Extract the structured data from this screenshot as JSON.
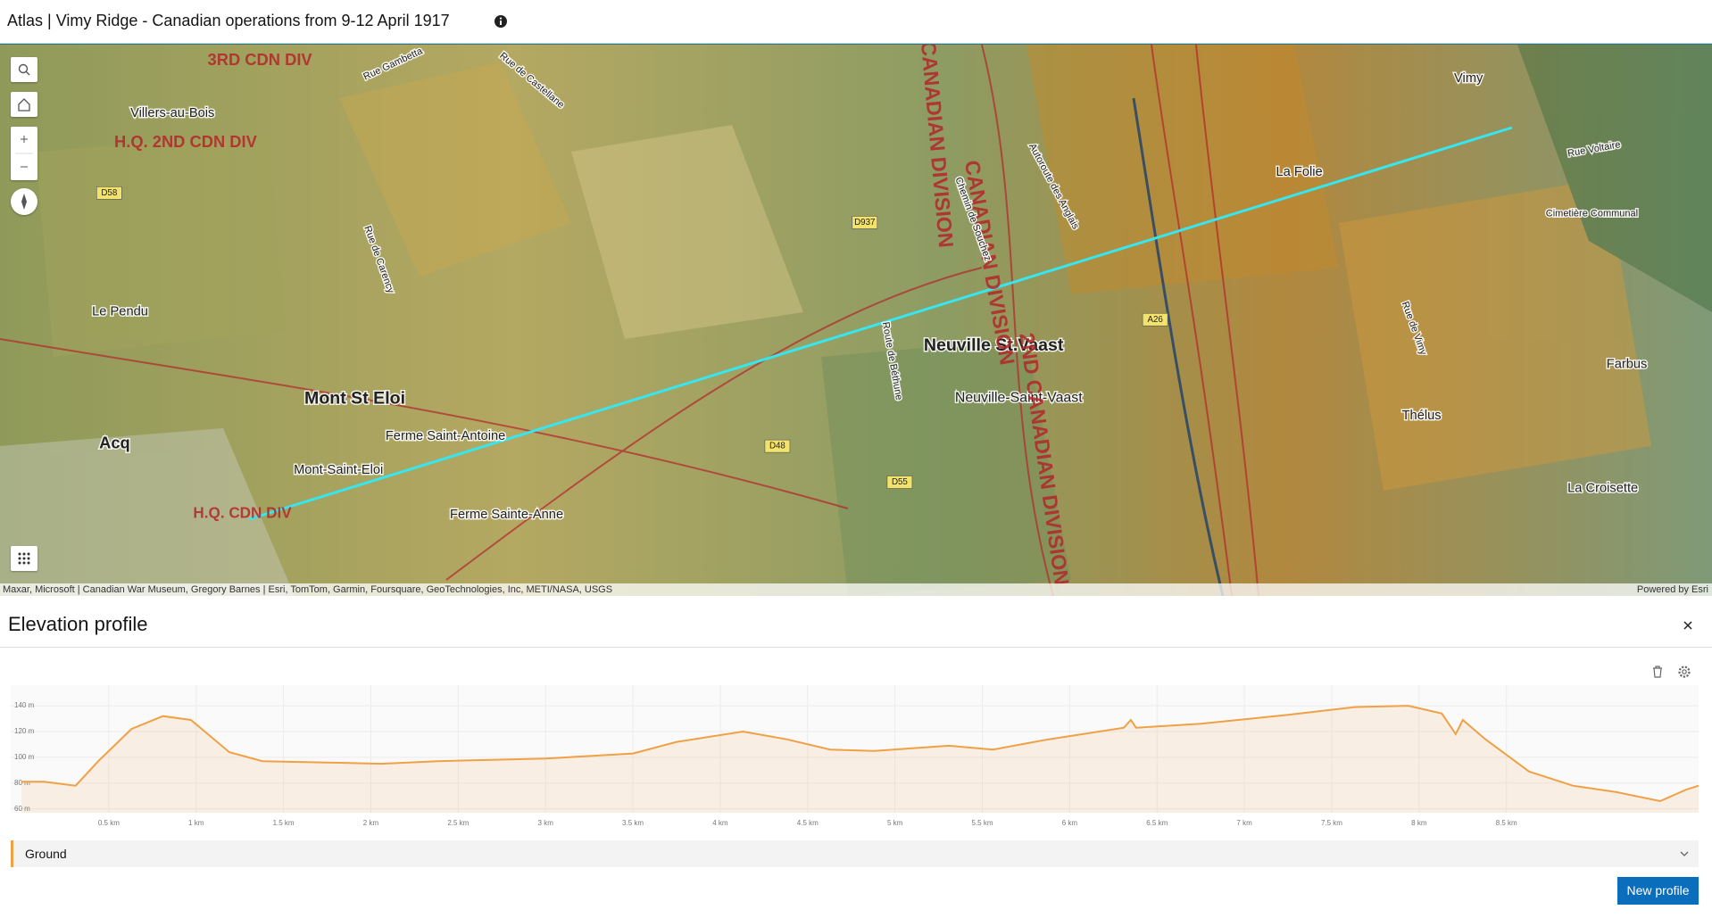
{
  "header": {
    "title": "Atlas | Vimy Ridge - Canadian operations from 9-12 April 1917"
  },
  "map": {
    "labels": [
      "Villers-au-Bois",
      "Le Pendu",
      "Mont-Saint-Eloi",
      "Ferme Saint-Antoine",
      "Ferme Sainte-Anne",
      "Neuville-Saint-Vaast",
      "Neuville St.Vaast",
      "Vimy",
      "Farbus",
      "Thélus",
      "La Croisette",
      "La Folie",
      "Cimetière Communal",
      "Acq",
      "Mont St Eloi",
      "Rue de Carency",
      "Autoroute des Anglais",
      "3RD CDN DIV",
      "H.Q. 2ND CDN DIV",
      "CANADIAN DIVISION",
      "H.Q. CDN DIV",
      "D58",
      "D937",
      "D48",
      "D55",
      "A26",
      "Rue Gambetta",
      "Rue de Castellane",
      "Route de Béthune",
      "Chemin de Souchez",
      "Rue de Vimy",
      "Rue Voltaire",
      "3RD CANADIAN DIVISION",
      "2ND CANADIAN DIVISION"
    ],
    "attribution": "Maxar, Microsoft | Canadian War Museum, Gregory Barnes | Esri, TomTom, Garmin, Foursquare, GeoTechnologies, Inc, METI/NASA, USGS",
    "powered_by": "Powered by Esri"
  },
  "panel": {
    "title": "Elevation profile",
    "button": "New profile"
  },
  "chart_data": {
    "type": "line",
    "x": [
      0,
      0.13,
      0.31,
      0.44,
      0.63,
      0.81,
      0.97,
      1.19,
      1.38,
      1.75,
      2.06,
      2.38,
      3,
      3.5,
      3.75,
      4.13,
      4.38,
      4.63,
      4.88,
      5.31,
      5.56,
      5.88,
      6.31,
      6.35,
      6.38,
      6.75,
      7.25,
      7.63,
      7.94,
      8.13,
      8.21,
      8.25,
      8.38,
      8.63,
      8.88,
      9.13,
      9.38,
      9.53,
      9.6
    ],
    "series": [
      {
        "name": "Ground",
        "color": "#f0a045",
        "values": [
          81,
          81,
          78,
          97,
          122,
          132,
          129,
          104,
          97,
          96,
          95,
          97,
          99,
          103,
          112,
          120,
          114,
          106,
          105,
          109,
          106,
          114,
          123,
          129,
          123,
          126,
          133,
          139,
          140,
          134,
          118,
          129,
          114,
          89,
          78,
          73,
          66,
          75,
          78
        ]
      }
    ],
    "xlim": [
      0,
      9.6
    ],
    "ylim": [
      57,
      156
    ],
    "xticks": [
      {
        "value": 0.5,
        "label": "0.5 km"
      },
      {
        "value": 1,
        "label": "1 km"
      },
      {
        "value": 1.5,
        "label": "1.5 km"
      },
      {
        "value": 2,
        "label": "2 km"
      },
      {
        "value": 2.5,
        "label": "2.5 km"
      },
      {
        "value": 3,
        "label": "3 km"
      },
      {
        "value": 3.5,
        "label": "3.5 km"
      },
      {
        "value": 4,
        "label": "4 km"
      },
      {
        "value": 4.5,
        "label": "4.5 km"
      },
      {
        "value": 5,
        "label": "5 km"
      },
      {
        "value": 5.5,
        "label": "5.5 km"
      },
      {
        "value": 6,
        "label": "6 km"
      },
      {
        "value": 6.5,
        "label": "6.5 km"
      },
      {
        "value": 7,
        "label": "7 km"
      },
      {
        "value": 7.5,
        "label": "7.5 km"
      },
      {
        "value": 8,
        "label": "8 km"
      },
      {
        "value": 8.5,
        "label": "8.5 km"
      }
    ],
    "yticks": [
      {
        "value": 60,
        "label": "60 m"
      },
      {
        "value": 80,
        "label": "80 m"
      },
      {
        "value": 100,
        "label": "100 m"
      },
      {
        "value": 120,
        "label": "120 m"
      },
      {
        "value": 140,
        "label": "140 m"
      }
    ],
    "grid": true
  }
}
